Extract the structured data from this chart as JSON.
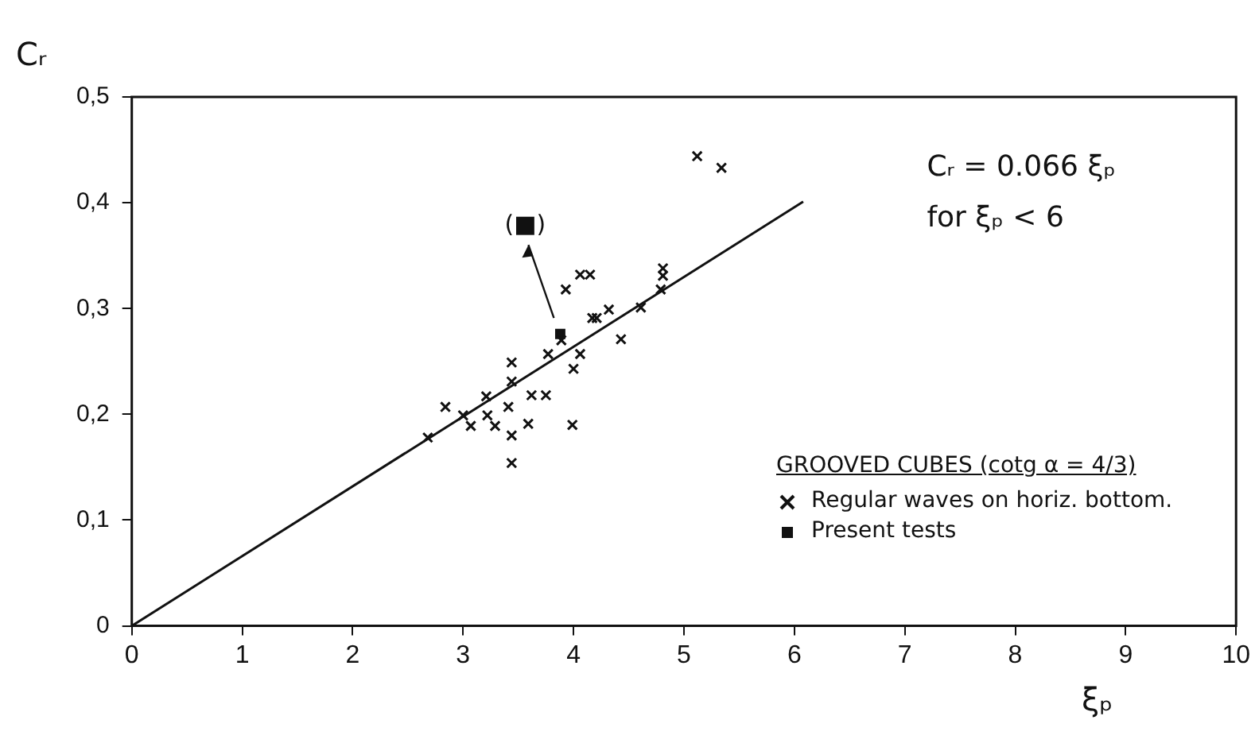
{
  "chart_data": {
    "type": "scatter",
    "xlabel": "ξₚ",
    "ylabel": "Cᵣ",
    "legend_title": "GROOVED CUBES (cotg α = 4/3)",
    "legend": "bottom right",
    "grid": false,
    "xlim": [
      0,
      10
    ],
    "xticks": [
      0,
      1,
      2,
      3,
      4,
      5,
      6,
      7,
      8,
      9,
      10
    ],
    "ylim": [
      0,
      0.5
    ],
    "yticks": [
      0,
      {
        "value": 0.1,
        "label": "0,1"
      },
      {
        "value": 0.2,
        "label": "0,2"
      },
      {
        "value": 0.3,
        "label": "0,3"
      },
      {
        "value": 0.4,
        "label": "0,4"
      },
      {
        "value": 0.5,
        "label": "0,5"
      }
    ],
    "annotations": [
      "Cᵣ = 0.066 ξₚ",
      "for ξₚ < 6",
      "(■)"
    ],
    "series": [
      {
        "name": "Regular waves on horiz. bottom.",
        "marker": "cross",
        "color": "#111111",
        "x": [
          5.12,
          5.34,
          3.93,
          4.06,
          4.15,
          4.81,
          4.81,
          4.79,
          4.32,
          4.17,
          4.21,
          4.61,
          4.43,
          4.06,
          4.0,
          3.77,
          3.89,
          3.44,
          3.44,
          3.62,
          3.75,
          3.41,
          3.21,
          2.84,
          3.0,
          3.07,
          3.22,
          3.29,
          3.44,
          3.59,
          3.99,
          3.44,
          2.68
        ],
        "values": [
          0.444,
          0.433,
          0.318,
          0.332,
          0.332,
          0.338,
          0.331,
          0.318,
          0.299,
          0.291,
          0.291,
          0.301,
          0.271,
          0.257,
          0.243,
          0.257,
          0.27,
          0.249,
          0.231,
          0.218,
          0.218,
          0.207,
          0.217,
          0.207,
          0.199,
          0.189,
          0.199,
          0.189,
          0.18,
          0.191,
          0.19,
          0.154,
          0.178
        ]
      },
      {
        "name": "Present tests",
        "marker": "square",
        "color": "#111111",
        "x": [
          3.88
        ],
        "values": [
          0.276
        ]
      },
      {
        "type": "line",
        "marker": "none",
        "line_style": "solid",
        "color": "#111111",
        "x": [
          0,
          6.08
        ],
        "values": [
          0,
          0.401
        ]
      }
    ]
  }
}
